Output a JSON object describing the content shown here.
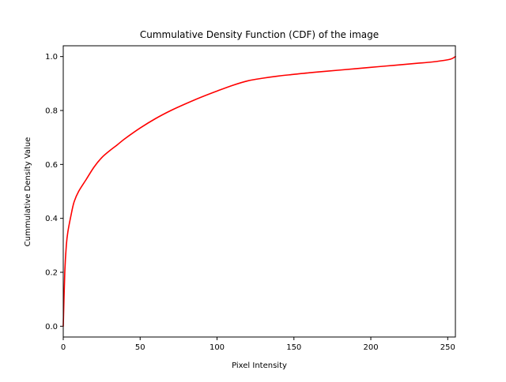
{
  "chart_data": {
    "type": "line",
    "title": "Cummulative Density Function (CDF) of the image",
    "xlabel": "Pixel Intensity",
    "ylabel": "Cummulative Density Value",
    "xlim": [
      0,
      255
    ],
    "ylim": [
      -0.04,
      1.04
    ],
    "xticks": [
      0,
      50,
      100,
      150,
      200,
      250
    ],
    "xtick_labels": [
      "0",
      "50",
      "100",
      "150",
      "200",
      "250"
    ],
    "yticks": [
      0.0,
      0.2,
      0.4,
      0.6,
      0.8,
      1.0
    ],
    "ytick_labels": [
      "0.0",
      "0.2",
      "0.4",
      "0.6",
      "0.8",
      "1.0"
    ],
    "grid": false,
    "legend": false,
    "series": [
      {
        "color": "#ff0000",
        "x": [
          0,
          1,
          2,
          3,
          5,
          7,
          10,
          15,
          20,
          25,
          30,
          35,
          40,
          50,
          60,
          70,
          80,
          90,
          100,
          110,
          120,
          130,
          140,
          150,
          160,
          170,
          180,
          190,
          200,
          210,
          220,
          230,
          240,
          250,
          253,
          255
        ],
        "y": [
          0.0,
          0.2,
          0.3,
          0.35,
          0.41,
          0.46,
          0.5,
          0.545,
          0.59,
          0.625,
          0.65,
          0.672,
          0.695,
          0.735,
          0.77,
          0.8,
          0.826,
          0.85,
          0.872,
          0.893,
          0.91,
          0.92,
          0.928,
          0.934,
          0.94,
          0.945,
          0.95,
          0.955,
          0.96,
          0.965,
          0.97,
          0.975,
          0.98,
          0.988,
          0.993,
          1.0
        ]
      }
    ]
  }
}
